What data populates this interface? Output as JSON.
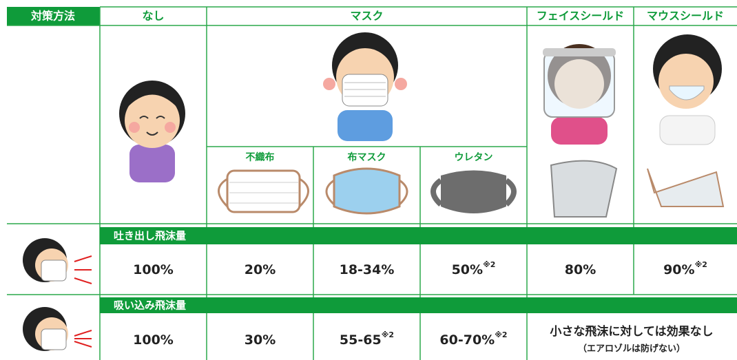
{
  "header": {
    "label": "対策方法",
    "columns": [
      "なし",
      "マスク",
      "フェイスシールド",
      "マウスシールド"
    ]
  },
  "mask_types": [
    "不織布",
    "布マスク",
    "ウレタン"
  ],
  "sections": [
    {
      "title": "吐き出し飛沫量",
      "values": [
        {
          "text": "100%"
        },
        {
          "text": "20%"
        },
        {
          "text": "18-34%"
        },
        {
          "text": "50%",
          "note": "※2"
        },
        {
          "text": "80%"
        },
        {
          "text": "90%",
          "note": "※2"
        }
      ]
    },
    {
      "title": "吸い込み飛沫量",
      "values": [
        {
          "text": "100%"
        },
        {
          "text": "30%"
        },
        {
          "text": "55-65",
          "note": "※2"
        },
        {
          "text": "60-70%",
          "note": "※2"
        }
      ],
      "merged_note": {
        "text": "小さな飛沫に対しては効果なし",
        "sub": "（エアロゾルは防げない）"
      }
    }
  ]
}
